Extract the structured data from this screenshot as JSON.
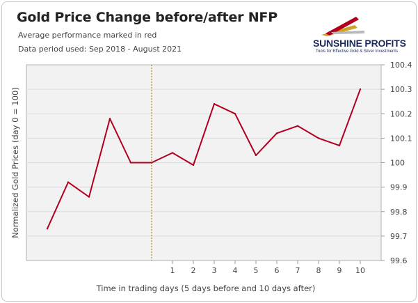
{
  "header": {
    "title": "Gold Price Change before/after NFP",
    "subtitle_1": "Average performance marked in red",
    "subtitle_2": "Data period used: Sep 2018 - August 2021"
  },
  "logo": {
    "name": "SUNSHINE PROFITS",
    "tagline": "Tools for Effective Gold & Silver Investments"
  },
  "colors": {
    "line": "#b0001e",
    "event_marker": "#b8860b",
    "plot_background": "#f2f2f2",
    "grid": "#dcdcdc"
  },
  "chart_data": {
    "type": "line",
    "x": [
      -5,
      -4,
      -3,
      -2,
      -1,
      0,
      1,
      2,
      3,
      4,
      5,
      6,
      7,
      8,
      9,
      10
    ],
    "series": [
      {
        "values": [
          99.73,
          99.92,
          99.86,
          100.18,
          100.0,
          100.0,
          100.04,
          99.99,
          100.24,
          100.2,
          100.03,
          100.12,
          100.15,
          100.1,
          100.07,
          100.3
        ]
      }
    ],
    "xticks": [
      "1",
      "2",
      "3",
      "4",
      "5",
      "6",
      "7",
      "8",
      "9",
      "10"
    ],
    "yticks": [
      "99.6",
      "99.7",
      "99.8",
      "99.9",
      "100",
      "100.1",
      "100.2",
      "100.3",
      "100.4"
    ],
    "ylim": [
      99.6,
      100.4
    ],
    "xlim": [
      -6,
      11
    ],
    "event_x": 0,
    "xlabel": "Time in trading days (5 days before and 10 days after)",
    "ylabel": "Normalized Gold Prices (day 0 = 100)",
    "grid": true,
    "y_axis_side": "right",
    "legend": "none"
  }
}
